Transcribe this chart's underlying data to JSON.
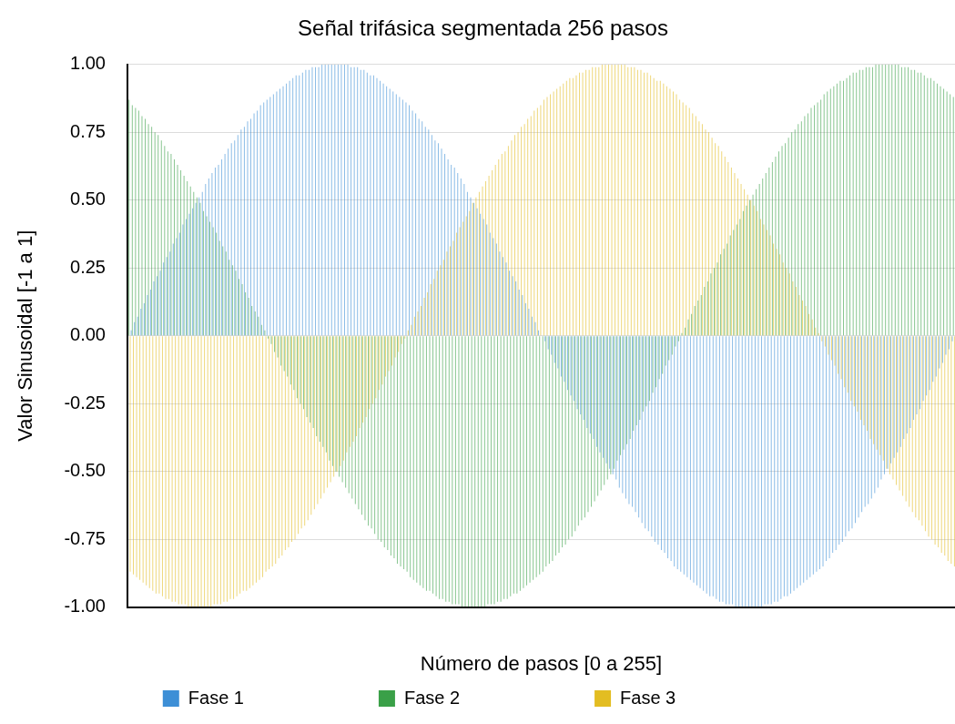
{
  "chart_data": {
    "type": "bar",
    "title": "Señal trifásica segmentada 256 pasos",
    "xlabel": "Número de pasos [0 a 255]",
    "ylabel": "Valor Sinusoidal [-1 a 1]",
    "ylim": [
      -1,
      1
    ],
    "yticks": [
      {
        "value": -1,
        "label": "-1.00"
      },
      {
        "value": -0.75,
        "label": "-0.75"
      },
      {
        "value": -0.5,
        "label": "-0.50"
      },
      {
        "value": -0.25,
        "label": "-0.25"
      },
      {
        "value": 0,
        "label": "0.00"
      },
      {
        "value": 0.25,
        "label": "0.25"
      },
      {
        "value": 0.5,
        "label": "0.50"
      },
      {
        "value": 0.75,
        "label": "0.75"
      },
      {
        "value": 1,
        "label": "1.00"
      }
    ],
    "grid": "y",
    "legend": "bottom",
    "categories": [
      null,
      null,
      null,
      null,
      null,
      null,
      null,
      null,
      null,
      null,
      null,
      null,
      null,
      null,
      null,
      null,
      null,
      null,
      null,
      null,
      null,
      null,
      null,
      null,
      null,
      null,
      null,
      null,
      null,
      null,
      null,
      null,
      null,
      null,
      null,
      null,
      null,
      null,
      null,
      null,
      null,
      null,
      null,
      null,
      null,
      null,
      null,
      null,
      null,
      null,
      null,
      null,
      null,
      null,
      null,
      null,
      null,
      null,
      null,
      null,
      null,
      null,
      null,
      null,
      null,
      null,
      null,
      null,
      null,
      null,
      null,
      null,
      null,
      null,
      null,
      null,
      null,
      null,
      null,
      null,
      null,
      null,
      null,
      null,
      null,
      null,
      null,
      null,
      null,
      null,
      null,
      null,
      null,
      null,
      null,
      null,
      null,
      null,
      null,
      null,
      null,
      null,
      null,
      null,
      null,
      null,
      null,
      null,
      null,
      null,
      null,
      null,
      null,
      null,
      null,
      null,
      null,
      null,
      null,
      null,
      null,
      null,
      null,
      null,
      null,
      null,
      null,
      null,
      null,
      null,
      null,
      null,
      null,
      null,
      null,
      null,
      null,
      null,
      null,
      null,
      null,
      null,
      null,
      null,
      null,
      null,
      null,
      null,
      null,
      null,
      null,
      null,
      null,
      null,
      null,
      null,
      null,
      null,
      null,
      null,
      null,
      null,
      null,
      null,
      null,
      null,
      null,
      null,
      null,
      null,
      null,
      null,
      null,
      null,
      null,
      null,
      null,
      null,
      null,
      null,
      null,
      null,
      null,
      null,
      null,
      null,
      null,
      null,
      null,
      null,
      null,
      null,
      null,
      null,
      null,
      null,
      null,
      null,
      null,
      null,
      null,
      null,
      null,
      null,
      null,
      null,
      null,
      null,
      null,
      null,
      null,
      null,
      null,
      null,
      null,
      null,
      null,
      null,
      null,
      null,
      null,
      null,
      null,
      null,
      null,
      null,
      null,
      null,
      null,
      null,
      null,
      null,
      null,
      null,
      null,
      null,
      null,
      null,
      null,
      null,
      null,
      null,
      null,
      null,
      null,
      null,
      null,
      null,
      null,
      null,
      null,
      null,
      null,
      null,
      null,
      null
    ],
    "series": [
      {
        "name": "Fase 1",
        "color": "#3d8fd6",
        "values": [
          0,
          0.02,
          0.05,
          0.07,
          0.1,
          0.12,
          0.15,
          0.17,
          0.2,
          0.22,
          0.24,
          0.27,
          0.29,
          0.31,
          0.34,
          0.36,
          0.38,
          0.41,
          0.43,
          0.45,
          0.47,
          0.49,
          0.51,
          0.53,
          0.56,
          0.58,
          0.6,
          0.62,
          0.63,
          0.65,
          0.67,
          0.69,
          0.71,
          0.72,
          0.74,
          0.76,
          0.77,
          0.79,
          0.8,
          0.82,
          0.83,
          0.85,
          0.86,
          0.87,
          0.88,
          0.89,
          0.9,
          0.91,
          0.92,
          0.93,
          0.94,
          0.95,
          0.96,
          0.96,
          0.97,
          0.98,
          0.98,
          0.99,
          0.99,
          0.99,
          1,
          1,
          1,
          1,
          1,
          1,
          1,
          1,
          1,
          0.99,
          0.99,
          0.99,
          0.98,
          0.98,
          0.97,
          0.96,
          0.96,
          0.95,
          0.94,
          0.93,
          0.92,
          0.91,
          0.9,
          0.89,
          0.88,
          0.87,
          0.86,
          0.85,
          0.83,
          0.82,
          0.8,
          0.79,
          0.77,
          0.76,
          0.74,
          0.72,
          0.71,
          0.69,
          0.67,
          0.65,
          0.63,
          0.62,
          0.6,
          0.58,
          0.56,
          0.53,
          0.51,
          0.49,
          0.47,
          0.45,
          0.43,
          0.41,
          0.38,
          0.36,
          0.34,
          0.31,
          0.29,
          0.27,
          0.24,
          0.22,
          0.2,
          0.17,
          0.15,
          0.12,
          0.1,
          0.07,
          0.05,
          0.02,
          0,
          -0.02,
          -0.05,
          -0.07,
          -0.1,
          -0.12,
          -0.15,
          -0.17,
          -0.2,
          -0.22,
          -0.24,
          -0.27,
          -0.29,
          -0.31,
          -0.34,
          -0.36,
          -0.38,
          -0.41,
          -0.43,
          -0.45,
          -0.47,
          -0.49,
          -0.51,
          -0.53,
          -0.56,
          -0.58,
          -0.6,
          -0.62,
          -0.63,
          -0.65,
          -0.67,
          -0.69,
          -0.71,
          -0.72,
          -0.74,
          -0.76,
          -0.77,
          -0.79,
          -0.8,
          -0.82,
          -0.83,
          -0.85,
          -0.86,
          -0.87,
          -0.88,
          -0.89,
          -0.9,
          -0.91,
          -0.92,
          -0.93,
          -0.94,
          -0.95,
          -0.96,
          -0.96,
          -0.97,
          -0.98,
          -0.98,
          -0.99,
          -0.99,
          -0.99,
          -1,
          -1,
          -1,
          -1,
          -1,
          -1,
          -1,
          -1,
          -1,
          -0.99,
          -0.99,
          -0.99,
          -0.98,
          -0.98,
          -0.97,
          -0.96,
          -0.96,
          -0.95,
          -0.94,
          -0.93,
          -0.92,
          -0.91,
          -0.9,
          -0.89,
          -0.88,
          -0.87,
          -0.86,
          -0.85,
          -0.83,
          -0.82,
          -0.8,
          -0.79,
          -0.77,
          -0.76,
          -0.74,
          -0.72,
          -0.71,
          -0.69,
          -0.67,
          -0.65,
          -0.63,
          -0.62,
          -0.6,
          -0.58,
          -0.56,
          -0.53,
          -0.51,
          -0.49,
          -0.47,
          -0.45,
          -0.43,
          -0.41,
          -0.38,
          -0.36,
          -0.34,
          -0.31,
          -0.29,
          -0.27,
          -0.24,
          -0.22,
          -0.2,
          -0.17,
          -0.15,
          -0.12,
          -0.1,
          -0.07,
          -0.05,
          -0.02
        ]
      },
      {
        "name": "Fase 2",
        "color": "#3aa048",
        "values": [
          0.87,
          0.85,
          0.84,
          0.83,
          0.81,
          0.8,
          0.78,
          0.77,
          0.75,
          0.74,
          0.72,
          0.7,
          0.68,
          0.67,
          0.65,
          0.63,
          0.61,
          0.59,
          0.57,
          0.55,
          0.53,
          0.51,
          0.49,
          0.46,
          0.44,
          0.42,
          0.4,
          0.38,
          0.35,
          0.33,
          0.31,
          0.28,
          0.26,
          0.24,
          0.21,
          0.19,
          0.16,
          0.14,
          0.11,
          0.09,
          0.07,
          0.04,
          0.02,
          -0.01,
          -0.03,
          -0.06,
          -0.08,
          -0.11,
          -0.13,
          -0.15,
          -0.18,
          -0.2,
          -0.23,
          -0.25,
          -0.27,
          -0.3,
          -0.32,
          -0.34,
          -0.37,
          -0.39,
          -0.41,
          -0.43,
          -0.46,
          -0.48,
          -0.5,
          -0.52,
          -0.54,
          -0.56,
          -0.58,
          -0.6,
          -0.62,
          -0.64,
          -0.66,
          -0.68,
          -0.7,
          -0.71,
          -0.73,
          -0.75,
          -0.76,
          -0.78,
          -0.79,
          -0.81,
          -0.82,
          -0.84,
          -0.85,
          -0.86,
          -0.87,
          -0.89,
          -0.9,
          -0.91,
          -0.92,
          -0.93,
          -0.94,
          -0.94,
          -0.95,
          -0.96,
          -0.97,
          -0.97,
          -0.98,
          -0.98,
          -0.99,
          -0.99,
          -0.99,
          -1,
          -1,
          -1,
          -1,
          -1,
          -1,
          -1,
          -1,
          -0.99,
          -0.99,
          -0.99,
          -0.98,
          -0.98,
          -0.97,
          -0.97,
          -0.96,
          -0.95,
          -0.95,
          -0.94,
          -0.93,
          -0.92,
          -0.91,
          -0.9,
          -0.89,
          -0.88,
          -0.87,
          -0.85,
          -0.84,
          -0.83,
          -0.81,
          -0.8,
          -0.78,
          -0.77,
          -0.75,
          -0.74,
          -0.72,
          -0.7,
          -0.68,
          -0.67,
          -0.65,
          -0.63,
          -0.61,
          -0.59,
          -0.57,
          -0.55,
          -0.53,
          -0.51,
          -0.49,
          -0.46,
          -0.44,
          -0.42,
          -0.4,
          -0.38,
          -0.35,
          -0.33,
          -0.31,
          -0.28,
          -0.26,
          -0.24,
          -0.21,
          -0.19,
          -0.16,
          -0.14,
          -0.11,
          -0.09,
          -0.07,
          -0.04,
          -0.02,
          0.01,
          0.03,
          0.06,
          0.08,
          0.11,
          0.13,
          0.15,
          0.18,
          0.2,
          0.23,
          0.25,
          0.27,
          0.3,
          0.32,
          0.34,
          0.37,
          0.39,
          0.41,
          0.43,
          0.46,
          0.48,
          0.5,
          0.52,
          0.54,
          0.56,
          0.58,
          0.6,
          0.62,
          0.64,
          0.66,
          0.68,
          0.7,
          0.71,
          0.73,
          0.75,
          0.76,
          0.78,
          0.79,
          0.81,
          0.82,
          0.84,
          0.85,
          0.86,
          0.87,
          0.89,
          0.9,
          0.91,
          0.92,
          0.93,
          0.94,
          0.94,
          0.95,
          0.96,
          0.97,
          0.97,
          0.98,
          0.98,
          0.99,
          0.99,
          0.99,
          1,
          1,
          1,
          1,
          1,
          1,
          1,
          1,
          0.99,
          0.99,
          0.99,
          0.98,
          0.98,
          0.97,
          0.97,
          0.96,
          0.95,
          0.95,
          0.94,
          0.93,
          0.92,
          0.91,
          0.9,
          0.89,
          0.88
        ]
      },
      {
        "name": "Fase 3",
        "color": "#e3bd22",
        "values": [
          -0.87,
          -0.88,
          -0.89,
          -0.9,
          -0.91,
          -0.92,
          -0.93,
          -0.94,
          -0.95,
          -0.95,
          -0.96,
          -0.97,
          -0.97,
          -0.98,
          -0.98,
          -0.99,
          -0.99,
          -0.99,
          -1,
          -1,
          -1,
          -1,
          -1,
          -1,
          -1,
          -1,
          -0.99,
          -0.99,
          -0.99,
          -0.98,
          -0.98,
          -0.97,
          -0.97,
          -0.96,
          -0.95,
          -0.94,
          -0.94,
          -0.93,
          -0.92,
          -0.91,
          -0.9,
          -0.89,
          -0.87,
          -0.86,
          -0.85,
          -0.84,
          -0.82,
          -0.81,
          -0.79,
          -0.78,
          -0.76,
          -0.75,
          -0.73,
          -0.71,
          -0.7,
          -0.68,
          -0.66,
          -0.64,
          -0.62,
          -0.6,
          -0.58,
          -0.56,
          -0.54,
          -0.52,
          -0.5,
          -0.48,
          -0.46,
          -0.43,
          -0.41,
          -0.39,
          -0.37,
          -0.34,
          -0.32,
          -0.3,
          -0.27,
          -0.25,
          -0.23,
          -0.2,
          -0.18,
          -0.15,
          -0.13,
          -0.11,
          -0.08,
          -0.06,
          -0.03,
          -0.01,
          0.02,
          0.04,
          0.07,
          0.09,
          0.11,
          0.14,
          0.16,
          0.19,
          0.21,
          0.24,
          0.26,
          0.28,
          0.31,
          0.33,
          0.35,
          0.38,
          0.4,
          0.42,
          0.44,
          0.46,
          0.49,
          0.51,
          0.53,
          0.55,
          0.57,
          0.59,
          0.61,
          0.63,
          0.65,
          0.67,
          0.68,
          0.7,
          0.72,
          0.74,
          0.75,
          0.77,
          0.78,
          0.8,
          0.81,
          0.83,
          0.84,
          0.85,
          0.87,
          0.88,
          0.89,
          0.9,
          0.91,
          0.92,
          0.93,
          0.94,
          0.95,
          0.95,
          0.96,
          0.97,
          0.97,
          0.98,
          0.98,
          0.99,
          0.99,
          0.99,
          1,
          1,
          1,
          1,
          1,
          1,
          1,
          1,
          0.99,
          0.99,
          0.99,
          0.98,
          0.98,
          0.97,
          0.97,
          0.96,
          0.95,
          0.94,
          0.94,
          0.93,
          0.92,
          0.91,
          0.9,
          0.89,
          0.87,
          0.86,
          0.85,
          0.84,
          0.82,
          0.81,
          0.79,
          0.78,
          0.76,
          0.75,
          0.73,
          0.71,
          0.7,
          0.68,
          0.66,
          0.64,
          0.62,
          0.6,
          0.58,
          0.56,
          0.54,
          0.52,
          0.5,
          0.48,
          0.46,
          0.43,
          0.41,
          0.39,
          0.37,
          0.34,
          0.32,
          0.3,
          0.27,
          0.25,
          0.23,
          0.2,
          0.18,
          0.15,
          0.13,
          0.11,
          0.08,
          0.06,
          0.03,
          0.01,
          -0.02,
          -0.04,
          -0.07,
          -0.09,
          -0.11,
          -0.14,
          -0.16,
          -0.19,
          -0.21,
          -0.24,
          -0.26,
          -0.28,
          -0.31,
          -0.33,
          -0.35,
          -0.38,
          -0.4,
          -0.42,
          -0.44,
          -0.46,
          -0.49,
          -0.51,
          -0.53,
          -0.55,
          -0.57,
          -0.59,
          -0.61,
          -0.63,
          -0.65,
          -0.67,
          -0.68,
          -0.7,
          -0.72,
          -0.74,
          -0.75,
          -0.77,
          -0.78,
          -0.8,
          -0.81,
          -0.83,
          -0.84,
          -0.85
        ]
      }
    ]
  }
}
